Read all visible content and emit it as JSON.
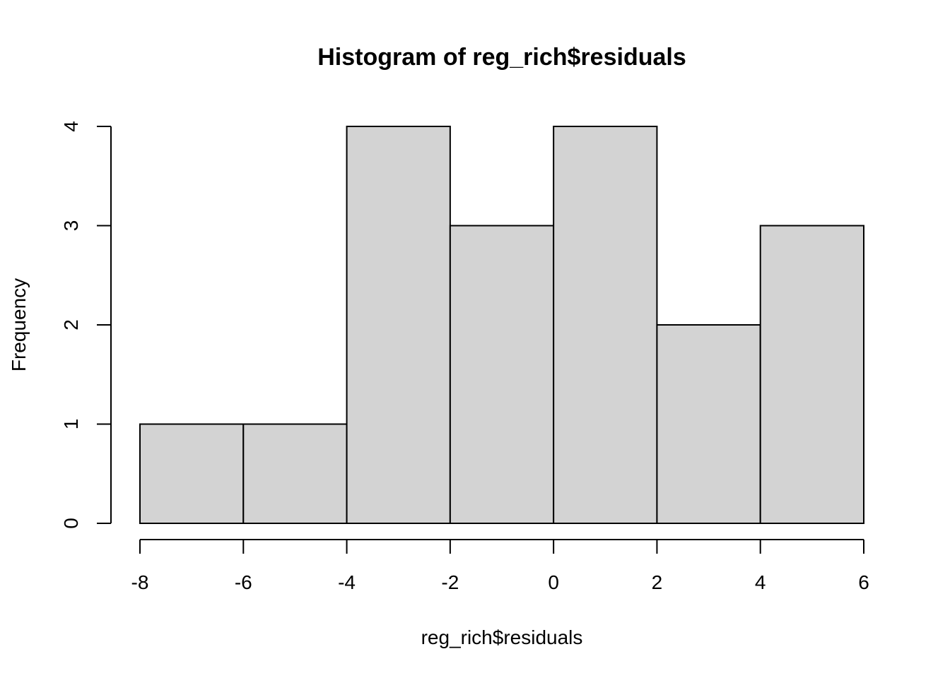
{
  "chart_data": {
    "type": "bar",
    "title": "Histogram of reg_rich$residuals",
    "xlabel": "reg_rich$residuals",
    "ylabel": "Frequency",
    "breaks": [
      -8,
      -6,
      -4,
      -2,
      0,
      2,
      4,
      6
    ],
    "values": [
      1,
      1,
      4,
      3,
      4,
      2,
      3
    ],
    "xlim": [
      -8,
      6
    ],
    "ylim": [
      0,
      4
    ],
    "xticks": [
      -8,
      -6,
      -4,
      -2,
      0,
      2,
      4,
      6
    ],
    "yticks": [
      0,
      1,
      2,
      3,
      4
    ],
    "grid": false,
    "bar_color": "#d3d3d3",
    "edge_color": "#000000"
  }
}
